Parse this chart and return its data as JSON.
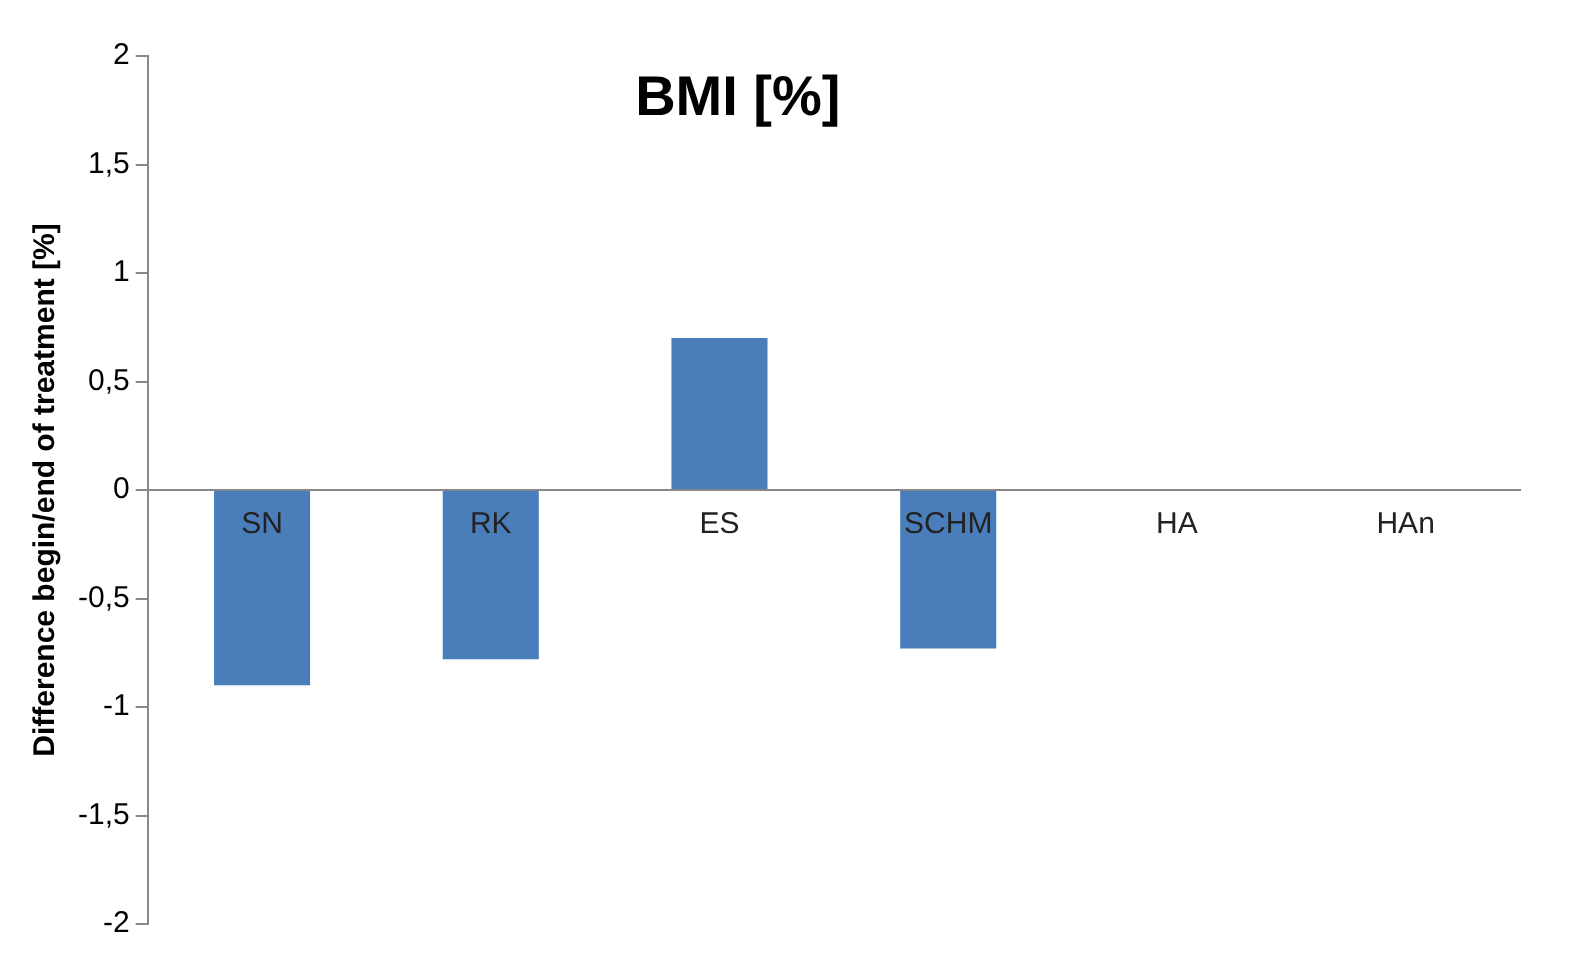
{
  "chart_data": {
    "type": "bar",
    "title": "BMI [%]",
    "ylabel": "Difference begin/end of treatment [%]",
    "categories": [
      "SN",
      "RK",
      "ES",
      "SCHM",
      "HA",
      "HAn"
    ],
    "values": [
      -0.9,
      -0.78,
      0.7,
      -0.73,
      0,
      0
    ],
    "color": "#4a7ebb",
    "ylim": [
      -2,
      2
    ],
    "yticks": [
      {
        "value": -2,
        "label": "-2"
      },
      {
        "value": -1.5,
        "label": "-1,5"
      },
      {
        "value": -1,
        "label": "-1"
      },
      {
        "value": -0.5,
        "label": "-0,5"
      },
      {
        "value": 0,
        "label": "0"
      },
      {
        "value": 0.5,
        "label": "0,5"
      },
      {
        "value": 1,
        "label": "1"
      },
      {
        "value": 1.5,
        "label": "1,5"
      },
      {
        "value": 2,
        "label": "2"
      }
    ],
    "grid": false,
    "legend": false
  }
}
